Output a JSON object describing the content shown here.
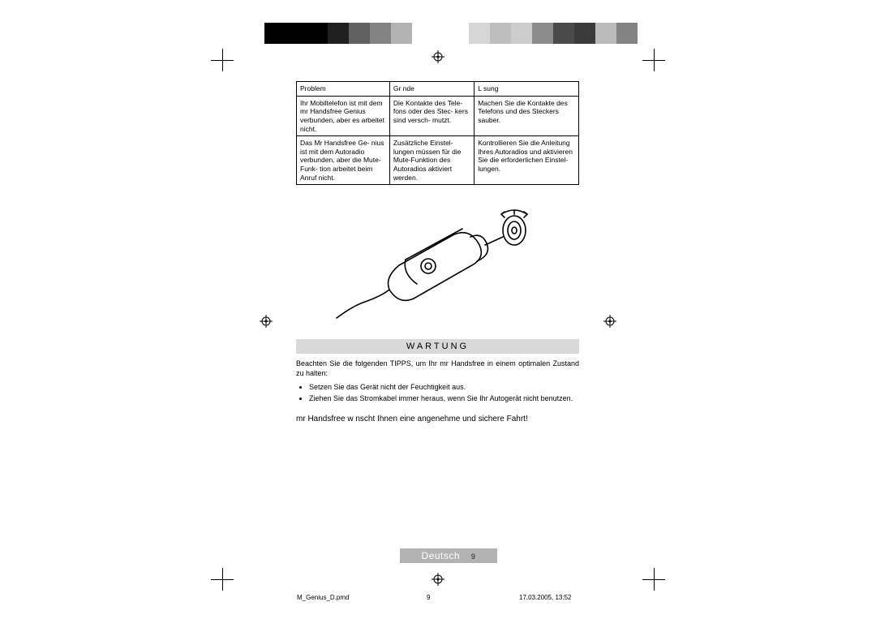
{
  "colorbar_left": [
    "#000000",
    "#000000",
    "#000000",
    "#1f1f1f",
    "#616161",
    "#838383",
    "#b3b3b3",
    "#ffffff"
  ],
  "colorbar_right": [
    "#d7d7d7",
    "#bebebe",
    "#cccccc",
    "#8d8d8d",
    "#4a4a4a",
    "#3b3b3b",
    "#bbbbbb",
    "#838383"
  ],
  "table": {
    "headers": [
      "Problem",
      "Gr nde",
      "L sung"
    ],
    "col_widths": [
      "33%",
      "30%",
      "37%"
    ],
    "rows": [
      [
        "Ihr Mobiltelefon ist mit dem mr Handsfree Genius verbunden, aber es arbeitet nicht.",
        "Die Kontakte des Tele- fons oder des Stec- kers sind versch- mutzt.",
        "Machen Sie die Kontakte des Telefons und des Steckers sauber."
      ],
      [
        "Das Mr Handsfree Ge- nius ist mit dem Autoradio verbunden, aber die Mute-Funk- tion arbeitet beim Anruf nicht.",
        "Zusätzliche Einstel- lungen müssen für die Mute-Funktion des Autoradios aktiviert werden.",
        "Kontrollieren Sie die Anleitung Ihres Autoradios und aktivieren Sie die erforderlichen Einstel- lungen."
      ]
    ]
  },
  "section_title": "Wartung",
  "intro": "Beachten Sie die folgenden TIPPS, um Ihr mr Handsfree in einem optimalen Zustand zu halten:",
  "tips": [
    "Setzen Sie das Gerät nicht der Feuchtigkeit aus.",
    "Ziehen Sie das Stromkabel immer heraus, wenn Sie Ihr Autogerät nicht benutzen."
  ],
  "closing": "mr Handsfree w nscht Ihnen eine angenehme und sichere Fahrt!",
  "langbar": {
    "label": "Deutsch",
    "page": "9"
  },
  "footer": {
    "file": "M_Genius_D.pmd",
    "page": "9",
    "datetime": "17.03.2005, 13:52"
  },
  "colors": {
    "section_bg": "#d9d9d9",
    "langbar_bg": "#b3b3b3"
  }
}
